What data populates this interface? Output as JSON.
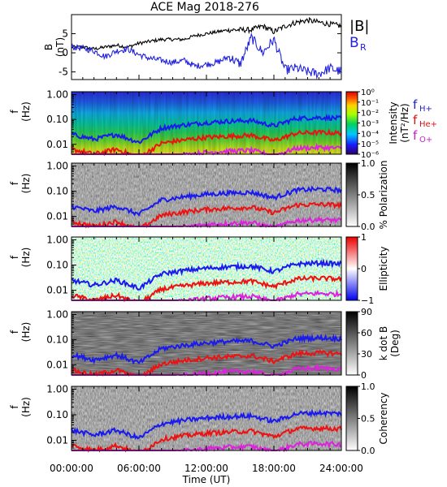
{
  "figure": {
    "title": "ACE Mag 2018-276",
    "xlabel": "Time (UT)",
    "xticklabels": [
      "00:00:00",
      "06:00:00",
      "12:00:00",
      "18:00:00",
      "24:00:00"
    ]
  },
  "top_panel": {
    "ylabel": "B",
    "yunit": "(nT)",
    "yticks": [
      "5",
      "0",
      "-5"
    ],
    "legend": {
      "b_total": "|B|",
      "b_r": "B",
      "b_r_sub": "R"
    }
  },
  "panels": [
    {
      "ylabel": "f",
      "yunit": "(Hz)",
      "yticks": [
        "1.00",
        "0.10",
        "0.01"
      ],
      "colorbar_title": "Intensity",
      "colorbar_unit": "(nT²/Hz)",
      "colorbar_ticks": [
        "10⁰",
        "10⁻¹",
        "10⁻²",
        "10⁻³",
        "10⁻⁴",
        "10⁻⁵",
        "10⁻⁶"
      ]
    },
    {
      "ylabel": "f",
      "yunit": "(Hz)",
      "yticks": [
        "1.00",
        "0.10",
        "0.01"
      ],
      "colorbar_title": "% Polarization",
      "colorbar_ticks": [
        "1.0",
        "0.5",
        "0.0"
      ]
    },
    {
      "ylabel": "f",
      "yunit": "(Hz)",
      "yticks": [
        "1.00",
        "0.10",
        "0.01"
      ],
      "colorbar_title": "Ellipticity",
      "colorbar_ticks": [
        "1",
        "0",
        "−1"
      ]
    },
    {
      "ylabel": "f",
      "yunit": "(Hz)",
      "yticks": [
        "1.00",
        "0.10",
        "0.01"
      ],
      "colorbar_title": "k dot B",
      "colorbar_unit": "(Deg)",
      "colorbar_ticks": [
        "90",
        "60",
        "30",
        "0"
      ]
    },
    {
      "ylabel": "f",
      "yunit": "(Hz)",
      "yticks": [
        "1.00",
        "0.10",
        "0.01"
      ],
      "colorbar_title": "Coherency",
      "colorbar_ticks": [
        "1.0",
        "0.5",
        "0.0"
      ]
    }
  ],
  "gyro_legend": [
    {
      "base": "f",
      "sub": "H+",
      "color": "#2222cc"
    },
    {
      "base": "f",
      "sub": "He+",
      "color": "#dd1111"
    },
    {
      "base": "f",
      "sub": "O+",
      "color": "#cc22cc"
    }
  ],
  "colors": {
    "b_total": "#000000",
    "b_r": "#2222dd",
    "f_h": "#1a1aee",
    "f_he": "#ee1111",
    "f_o": "#dd22dd"
  },
  "chart_data": {
    "type": "line",
    "title": "ACE Mag 2018-276",
    "xlabel": "Time (UT)",
    "ylabel": "B (nT)",
    "x": [
      0,
      1,
      2,
      3,
      4,
      5,
      6,
      7,
      8,
      9,
      10,
      11,
      12,
      13,
      14,
      15,
      16,
      17,
      18,
      19,
      20,
      21,
      22,
      23,
      24
    ],
    "x_unit": "hours UT",
    "ylim": [
      -7,
      10
    ],
    "series": [
      {
        "name": "|B|",
        "values": [
          1.5,
          1.5,
          1.0,
          1.5,
          2.0,
          1.5,
          2.5,
          3.0,
          3.5,
          3.5,
          3.5,
          4.5,
          5.0,
          5.5,
          6.0,
          6.0,
          6.0,
          7.0,
          5.5,
          7.0,
          8.0,
          8.5,
          8.0,
          7.5,
          7.0
        ]
      },
      {
        "name": "B",
        "values": [
          1.5,
          1.2,
          0.5,
          -1.0,
          0.5,
          1.0,
          -0.5,
          -1.5,
          -2.0,
          -2.5,
          -2.0,
          -3.5,
          -3.0,
          -2.5,
          -1.0,
          -3.0,
          4.0,
          0.0,
          3.5,
          -4.5,
          -4.0,
          -5.0,
          -5.5,
          -4.0,
          -5.0
        ]
      }
    ],
    "gyrofrequency_hz": {
      "x": [
        0,
        2,
        4,
        6,
        8,
        10,
        12,
        14,
        16,
        18,
        20,
        22,
        24
      ],
      "f_H+": [
        0.025,
        0.016,
        0.025,
        0.012,
        0.045,
        0.06,
        0.075,
        0.085,
        0.09,
        0.055,
        0.11,
        0.12,
        0.11
      ],
      "f_He+": [
        0.0063,
        0.004,
        0.0063,
        0.003,
        0.011,
        0.015,
        0.019,
        0.021,
        0.023,
        0.014,
        0.028,
        0.03,
        0.028
      ],
      "f_O+": [
        0.0016,
        0.001,
        0.0016,
        0.0008,
        0.0028,
        0.0037,
        0.0047,
        0.0053,
        0.0057,
        0.0035,
        0.0069,
        0.0075,
        0.0069
      ]
    },
    "panel_quantities": [
      "Intensity (nT²/Hz)",
      "% Polarization",
      "Ellipticity",
      "k dot B (Deg)",
      "Coherency"
    ],
    "frequency_range_hz": [
      0.004,
      1.3
    ]
  }
}
